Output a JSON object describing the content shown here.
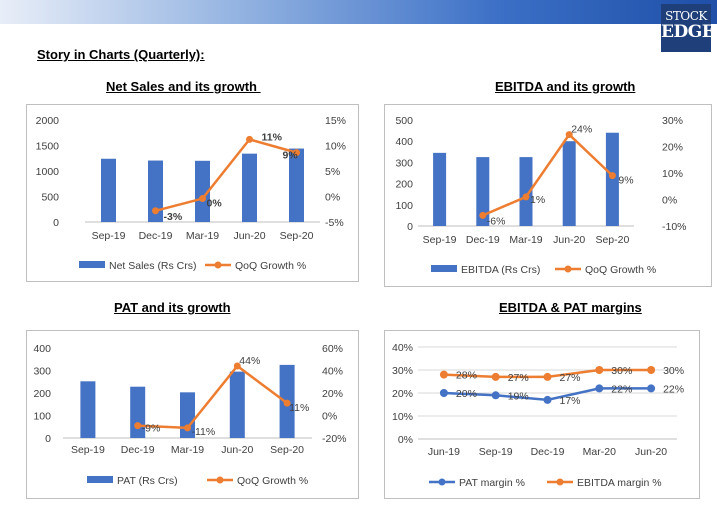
{
  "header": {
    "story_title": "Story in Charts (Quarterly):",
    "logo_line1": "STOCK",
    "logo_line2": "EDGE"
  },
  "colors": {
    "bar": "#4472c4",
    "line": "#ed7d31",
    "pat_line": "#4472c4"
  },
  "chart_data": [
    {
      "id": "net-sales",
      "type": "bar+line",
      "title": "Net Sales and its growth ",
      "categories": [
        "Sep-19",
        "Dec-19",
        "Mar-19",
        "Jun-20",
        "Sep-20"
      ],
      "ylim": [
        0,
        2000
      ],
      "yticks": [
        "2000",
        "1500",
        "1000",
        "500",
        "0"
      ],
      "y2lim": [
        -5,
        15
      ],
      "y2ticks": [
        "15%",
        "10%",
        "5%",
        "0%",
        "-5%"
      ],
      "series": [
        {
          "name": "Net Sales (Rs Crs)",
          "kind": "bar",
          "axis": "left",
          "values": [
            1240,
            1205,
            1200,
            1340,
            1440
          ]
        },
        {
          "name": "QoQ Growth %",
          "kind": "line",
          "axis": "right",
          "values": [
            null,
            -2.8,
            -0.4,
            11.2,
            8.6
          ],
          "labels": [
            "",
            "-3%",
            "0%",
            "11%",
            "9%"
          ]
        }
      ],
      "legend_position": "bottom"
    },
    {
      "id": "ebitda",
      "type": "bar+line",
      "title": "EBITDA and its growth",
      "categories": [
        "Sep-19",
        "Dec-19",
        "Mar-19",
        "Jun-20",
        "Sep-20"
      ],
      "ylim": [
        0,
        500
      ],
      "yticks": [
        "500",
        "400",
        "300",
        "200",
        "100",
        "0"
      ],
      "y2lim": [
        -10,
        30
      ],
      "y2ticks": [
        "30%",
        "20%",
        "10%",
        "0%",
        "-10%"
      ],
      "series": [
        {
          "name": "EBITDA (Rs Crs)",
          "kind": "bar",
          "axis": "left",
          "values": [
            345,
            325,
            325,
            400,
            440
          ]
        },
        {
          "name": "QoQ Growth %",
          "kind": "line",
          "axis": "right",
          "values": [
            null,
            -6,
            1,
            24.5,
            9
          ],
          "labels": [
            "",
            "-6%",
            "1%",
            "24%",
            "9%"
          ]
        }
      ],
      "legend_position": "bottom"
    },
    {
      "id": "pat",
      "type": "bar+line",
      "title": "PAT and its growth",
      "categories": [
        "Sep-19",
        "Dec-19",
        "Mar-19",
        "Jun-20",
        "Sep-20"
      ],
      "ylim": [
        0,
        400
      ],
      "yticks": [
        "400",
        "300",
        "200",
        "100",
        "0"
      ],
      "y2lim": [
        -20,
        60
      ],
      "y2ticks": [
        "60%",
        "40%",
        "20%",
        "0%",
        "-20%"
      ],
      "series": [
        {
          "name": "PAT (Rs Crs)",
          "kind": "bar",
          "axis": "left",
          "values": [
            252,
            228,
            203,
            295,
            325
          ]
        },
        {
          "name": "QoQ Growth %",
          "kind": "line",
          "axis": "right",
          "values": [
            null,
            -9,
            -11,
            44,
            11
          ],
          "labels": [
            "",
            "-9%",
            "-11%",
            "44%",
            "11%"
          ]
        }
      ],
      "legend_position": "bottom"
    },
    {
      "id": "margins",
      "type": "line",
      "title": "EBITDA & PAT margins",
      "categories": [
        "Jun-19",
        "Sep-19",
        "Dec-19",
        "Mar-20",
        "Jun-20"
      ],
      "ylim": [
        0,
        40
      ],
      "yticks": [
        "40%",
        "30%",
        "20%",
        "10%",
        "0%"
      ],
      "grid": true,
      "series": [
        {
          "name": "PAT margin %",
          "kind": "line",
          "axis": "left",
          "values": [
            20,
            19,
            17,
            22,
            22
          ],
          "labels": [
            "20%",
            "19%",
            "17%",
            "22%",
            "22%"
          ]
        },
        {
          "name": "EBITDA margin %",
          "kind": "line",
          "axis": "left",
          "values": [
            28,
            27,
            27,
            30,
            30
          ],
          "labels": [
            "28%",
            "27%",
            "27%",
            "30%",
            "30%"
          ]
        }
      ],
      "legend_position": "bottom"
    }
  ]
}
